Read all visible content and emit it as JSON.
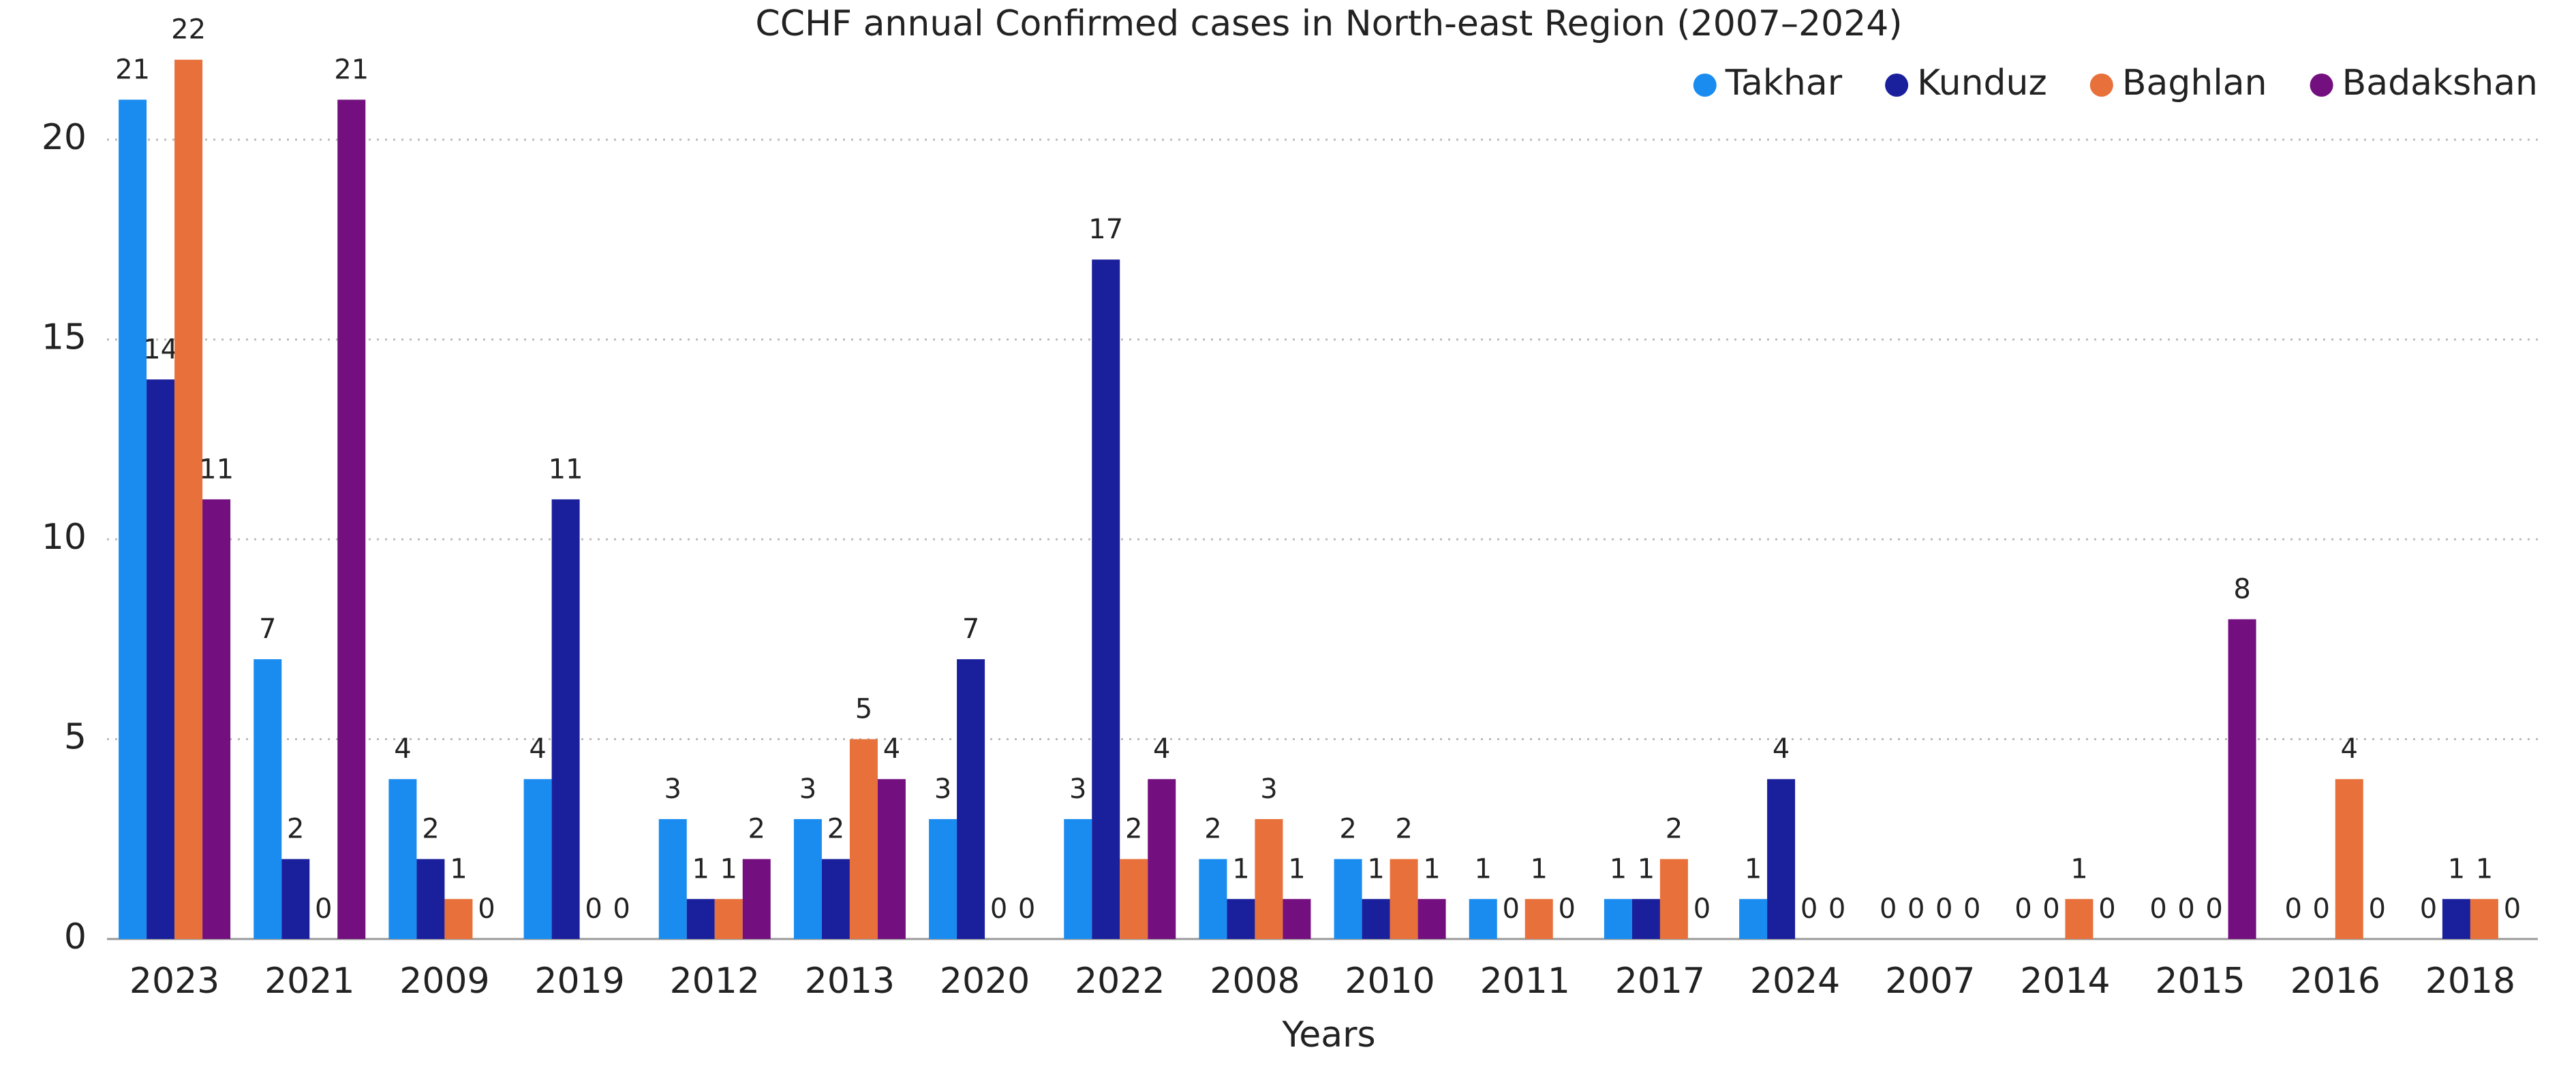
{
  "chart_data": {
    "type": "bar",
    "title": "CCHF annual Confirmed cases in North-east Region (2007–2024)",
    "x_label": "Years",
    "categories": [
      "2023",
      "2021",
      "2009",
      "2019",
      "2012",
      "2013",
      "2020",
      "2022",
      "2008",
      "2010",
      "2011",
      "2017",
      "2024",
      "2007",
      "2014",
      "2015",
      "2016",
      "2018"
    ],
    "series": [
      {
        "name": "Takhar",
        "color": "#1a8cf0",
        "values": [
          21,
          7,
          4,
          4,
          3,
          3,
          3,
          3,
          2,
          2,
          1,
          1,
          1,
          0,
          0,
          0,
          0,
          0
        ]
      },
      {
        "name": "Kunduz",
        "color": "#1a1f9c",
        "values": [
          14,
          2,
          2,
          11,
          1,
          2,
          7,
          17,
          1,
          1,
          0,
          1,
          4,
          0,
          0,
          0,
          0,
          1
        ]
      },
      {
        "name": "Baghlan",
        "color": "#e8703a",
        "values": [
          22,
          0,
          1,
          0,
          1,
          5,
          0,
          2,
          3,
          2,
          1,
          2,
          0,
          0,
          1,
          0,
          4,
          1
        ]
      },
      {
        "name": "Badakshan",
        "color": "#730f7e",
        "values": [
          11,
          21,
          0,
          0,
          2,
          4,
          0,
          4,
          1,
          1,
          0,
          0,
          0,
          0,
          0,
          8,
          0,
          0
        ]
      }
    ],
    "ylim": [
      0,
      23
    ],
    "yticks": [
      0,
      5,
      10,
      15,
      20
    ],
    "grid": true,
    "legend": "top-right"
  }
}
